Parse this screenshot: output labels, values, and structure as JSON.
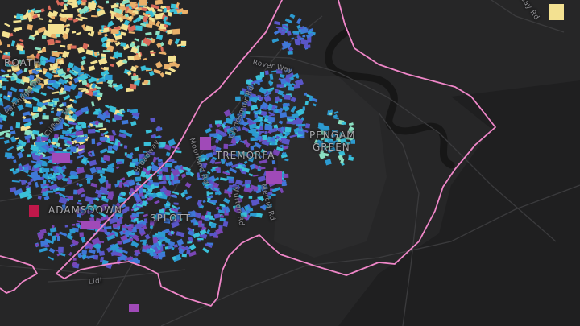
{
  "map": {
    "colors": {
      "land": "#262627",
      "park": "#2f2f30",
      "river": "#161616",
      "water": "#1c1c1d",
      "road": "#3a3a3c",
      "boundary": "#ef86c8",
      "palette": [
        "#f3e191",
        "#e9b06a",
        "#d96a5a",
        "#8be0c2",
        "#3ac0d8",
        "#2c9ad0",
        "#3f78d8",
        "#5a56c8",
        "#7a46b6",
        "#a04ab8",
        "#c0184a"
      ]
    },
    "places": {
      "roath": "ROATH",
      "tremorfa": "TREMORFA",
      "pengam_1": "PENGAM",
      "pengam_2": "GREEN",
      "adamsdown": "ADAMSDOWN",
      "splott": "SPLOTT"
    },
    "roads": {
      "rover_way": "Rover Way",
      "lidl": "Lidl",
      "moorland_rd": "Moorland Rd",
      "mercia_rd": "Mercia Rd",
      "murton_rd": "Murton Rd",
      "clydesmuir_rd": "Clydesmuir Rd",
      "clifton_st": "Clifton St",
      "partridge_rd": "Partridge Rd",
      "broadway": "Broadway",
      "bay_rd": "Bay Rd"
    }
  }
}
